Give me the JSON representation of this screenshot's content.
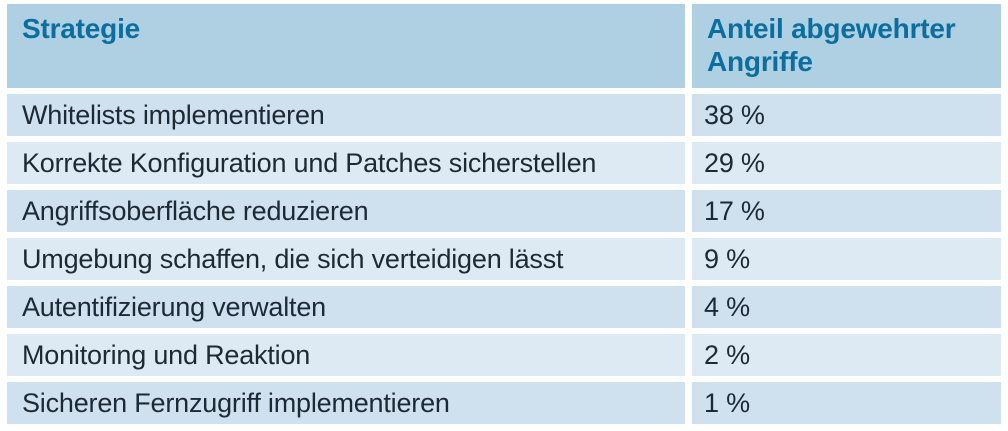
{
  "table": {
    "columns": [
      {
        "label": "Strategie"
      },
      {
        "label": "Anteil abgewehrter Angriffe"
      }
    ],
    "rows": [
      {
        "strategy": "Whitelists implementieren",
        "share": "38 %"
      },
      {
        "strategy": "Korrekte Konfiguration und Patches sicherstellen",
        "share": "29 %"
      },
      {
        "strategy": "Angriffsoberfläche reduzieren",
        "share": "17 %"
      },
      {
        "strategy": "Umgebung schaffen, die sich verteidigen lässt",
        "share": "9 %"
      },
      {
        "strategy": "Autentifizierung verwalten",
        "share": "4 %"
      },
      {
        "strategy": "Monitoring und Reaktion",
        "share": "2 %"
      },
      {
        "strategy": "Sicheren Fernzugriff implementieren",
        "share": "1 %"
      }
    ]
  },
  "colors": {
    "header_bg": "#afd0e2",
    "header_text": "#0c6e9f",
    "row_bg_dark": "#cfe1ee",
    "row_bg_light": "#ddeaf4",
    "body_text": "#1d2933",
    "gap": "#ffffff"
  },
  "chart_data": {
    "type": "table",
    "title": "",
    "columns": [
      "Strategie",
      "Anteil abgewehrter Angriffe"
    ],
    "categories": [
      "Whitelists implementieren",
      "Korrekte Konfiguration und Patches sicherstellen",
      "Angriffsoberfläche reduzieren",
      "Umgebung schaffen, die sich verteidigen lässt",
      "Autentifizierung verwalten",
      "Monitoring und Reaktion",
      "Sicheren Fernzugriff implementieren"
    ],
    "values": [
      38,
      29,
      17,
      9,
      4,
      2,
      1
    ],
    "unit": "%"
  }
}
